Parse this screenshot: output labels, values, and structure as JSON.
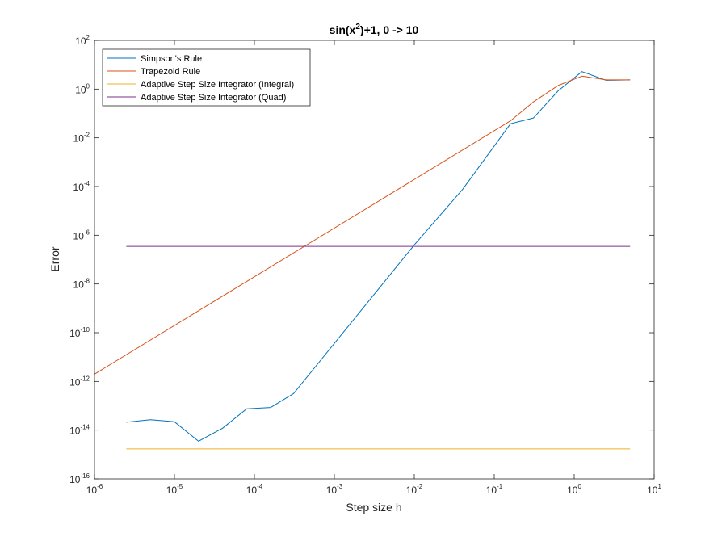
{
  "chart_data": {
    "type": "line",
    "title": "sin(x²)+1, 0 -> 10",
    "title_parts": {
      "base": "sin(x",
      "sup": "2",
      "rest": ")+1, 0 -> 10"
    },
    "xlabel": "Step size h",
    "ylabel": "Error",
    "xscale": "log",
    "yscale": "log",
    "xlim": [
      1e-06,
      10
    ],
    "ylim": [
      1e-16,
      100
    ],
    "x_ticks": [
      {
        "base": "10",
        "exp": "-6",
        "value": 1e-06
      },
      {
        "base": "10",
        "exp": "-5",
        "value": 1e-05
      },
      {
        "base": "10",
        "exp": "-4",
        "value": 0.0001
      },
      {
        "base": "10",
        "exp": "-3",
        "value": 0.001
      },
      {
        "base": "10",
        "exp": "-2",
        "value": 0.01
      },
      {
        "base": "10",
        "exp": "-1",
        "value": 0.1
      },
      {
        "base": "10",
        "exp": "0",
        "value": 1
      },
      {
        "base": "10",
        "exp": "1",
        "value": 10
      }
    ],
    "y_ticks": [
      {
        "base": "10",
        "exp": "-16",
        "value": 1e-16
      },
      {
        "base": "10",
        "exp": "-14",
        "value": 1e-14
      },
      {
        "base": "10",
        "exp": "-12",
        "value": 1e-12
      },
      {
        "base": "10",
        "exp": "-10",
        "value": 1e-10
      },
      {
        "base": "10",
        "exp": "-8",
        "value": 1e-08
      },
      {
        "base": "10",
        "exp": "-6",
        "value": 1e-06
      },
      {
        "base": "10",
        "exp": "-4",
        "value": 0.0001
      },
      {
        "base": "10",
        "exp": "-2",
        "value": 0.01
      },
      {
        "base": "10",
        "exp": "0",
        "value": 1
      },
      {
        "base": "10",
        "exp": "2",
        "value": 100
      }
    ],
    "grid": false,
    "legend_position": "top-left",
    "series": [
      {
        "name": "Simpson's Rule",
        "color": "#0072BD",
        "x": [
          2.5e-06,
          5e-06,
          1e-05,
          2e-05,
          4e-05,
          8e-05,
          0.00016,
          0.00031,
          0.01,
          0.04,
          0.16,
          0.31,
          0.63,
          1.25,
          2.5,
          5
        ],
        "y": [
          2.1e-14,
          2.7e-14,
          2.2e-14,
          3.5e-15,
          1.2e-14,
          7.5e-14,
          8.5e-14,
          3.2e-13,
          4e-07,
          7.5e-05,
          0.038,
          0.065,
          0.85,
          5.2,
          2.3,
          2.4
        ]
      },
      {
        "name": "Trapezoid Rule",
        "color": "#D95319",
        "x": [
          1e-06,
          0.16,
          0.31,
          0.63,
          1.25,
          2.5,
          5
        ],
        "y": [
          2e-12,
          0.05,
          0.3,
          1.4,
          3.4,
          2.4,
          2.4
        ]
      },
      {
        "name": "Adaptive Step Size Integrator (Integral)",
        "color": "#EDB120",
        "x": [
          2.5e-06,
          5
        ],
        "y": [
          1.7e-15,
          1.7e-15
        ]
      },
      {
        "name": "Adaptive Step Size Integrator (Quad)",
        "color": "#7E2F8E",
        "x": [
          2.5e-06,
          5
        ],
        "y": [
          3.5e-07,
          3.5e-07
        ]
      }
    ]
  }
}
